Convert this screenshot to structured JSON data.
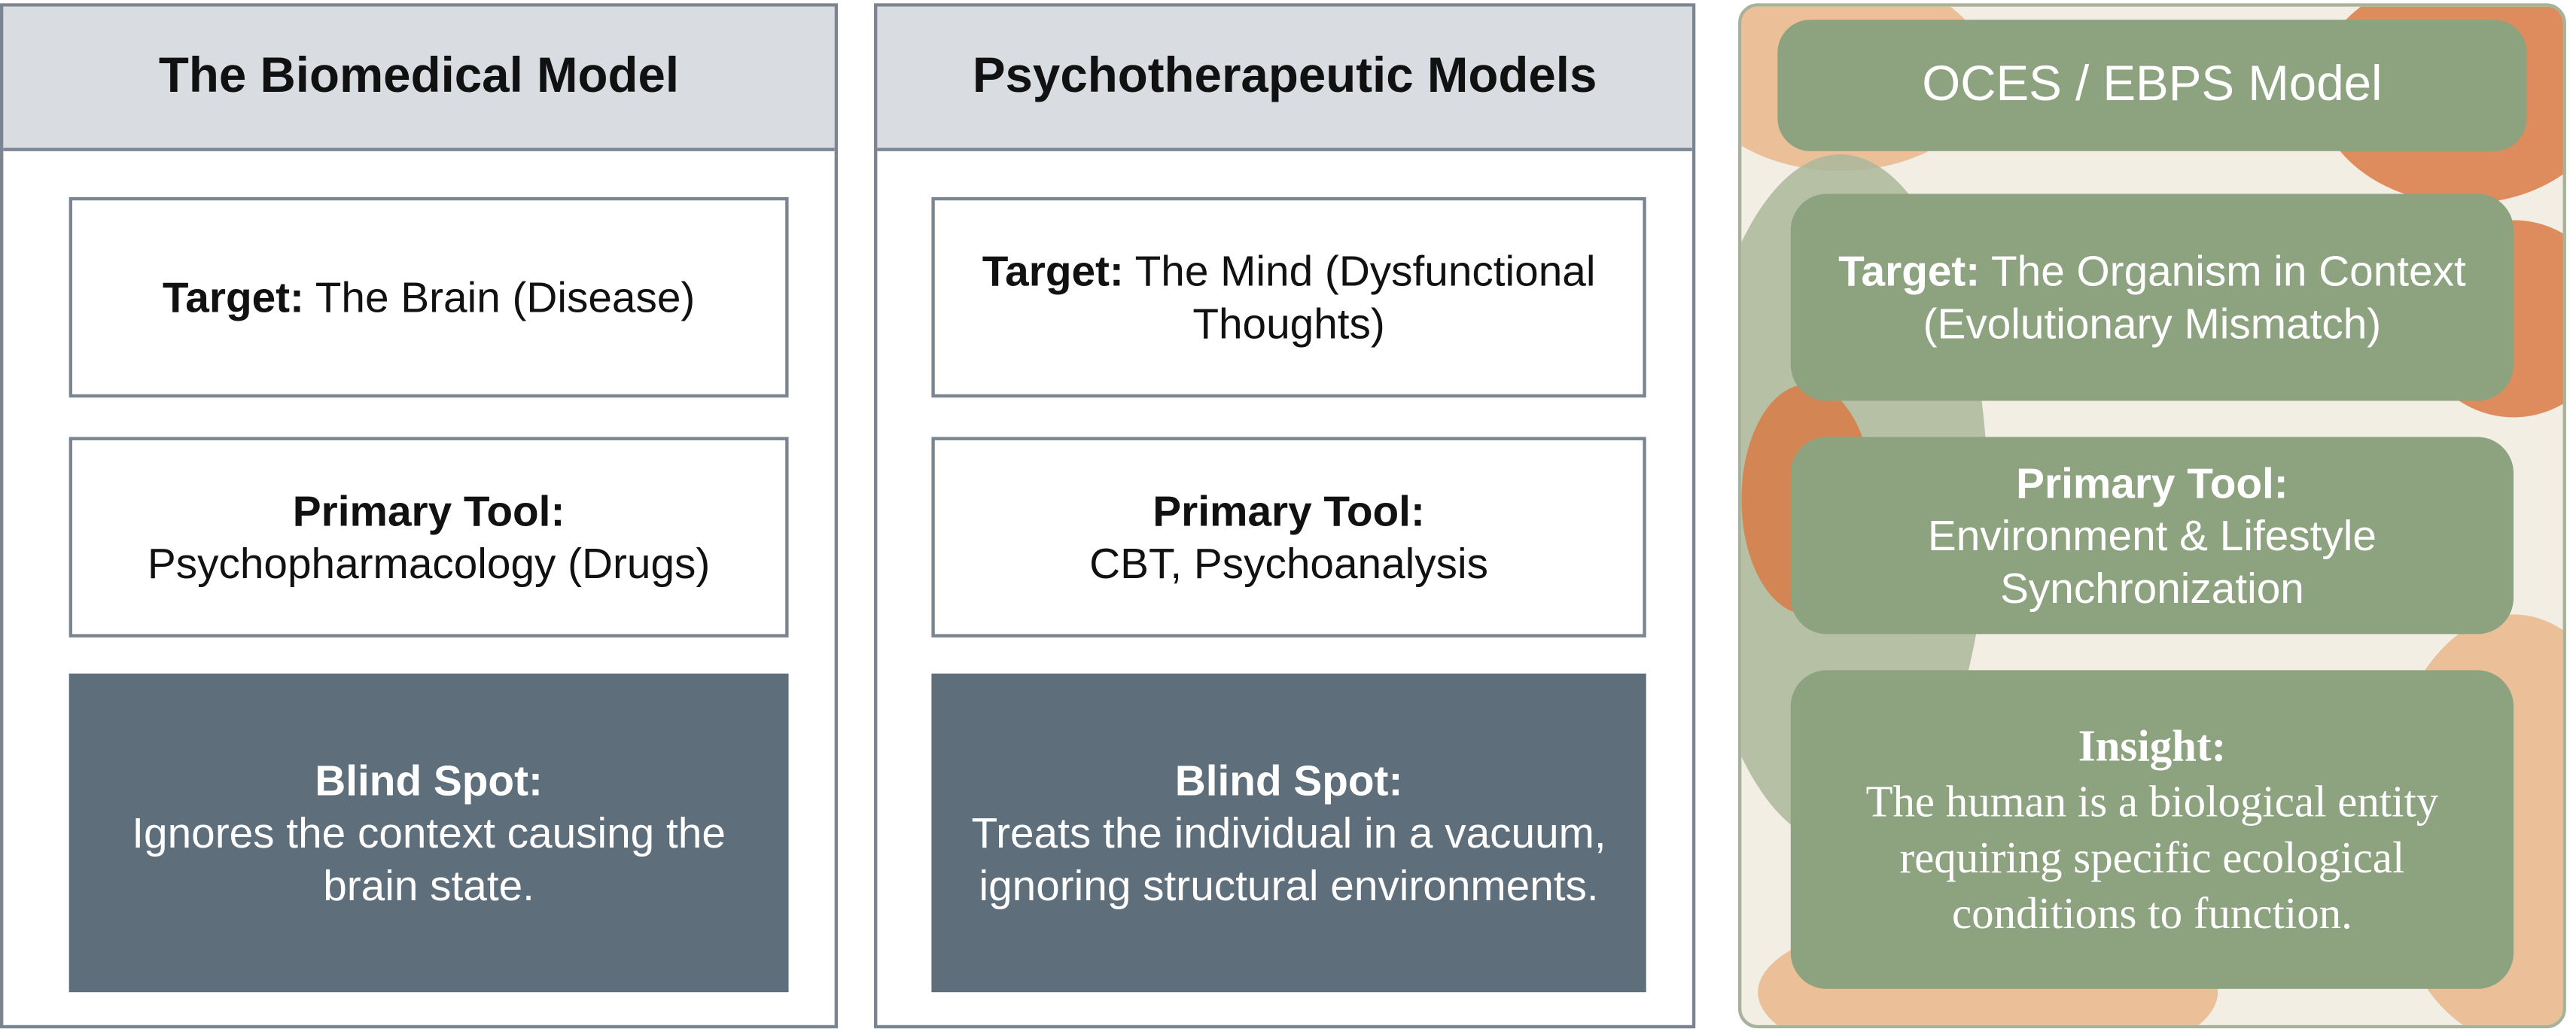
{
  "columns": [
    {
      "title": "The Biomedical Model",
      "sections": [
        {
          "label": "Target:",
          "text": "The Brain (Disease)"
        },
        {
          "label": "Primary Tool:",
          "text": "Psychopharmacology (Drugs)"
        },
        {
          "label": "Blind Spot:",
          "text": "Ignores the context causing the brain state."
        }
      ]
    },
    {
      "title": "Psychotherapeutic Models",
      "sections": [
        {
          "label": "Target:",
          "text": "The Mind (Dysfunctional Thoughts)"
        },
        {
          "label": "Primary Tool:",
          "text": "CBT, Psychoanalysis"
        },
        {
          "label": "Blind Spot:",
          "text": "Treats the individual in a vacuum, ignoring structural environments."
        }
      ]
    },
    {
      "title": "OCES / EBPS Model",
      "sections": [
        {
          "label": "Target:",
          "text": "The Organism in Context (Evolutionary Mismatch)"
        },
        {
          "label": "Primary Tool:",
          "text": "Environment & Lifestyle Synchronization"
        },
        {
          "label": "Insight:",
          "text": "The human is a biological entity requiring specific ecological conditions to function."
        }
      ]
    }
  ]
}
